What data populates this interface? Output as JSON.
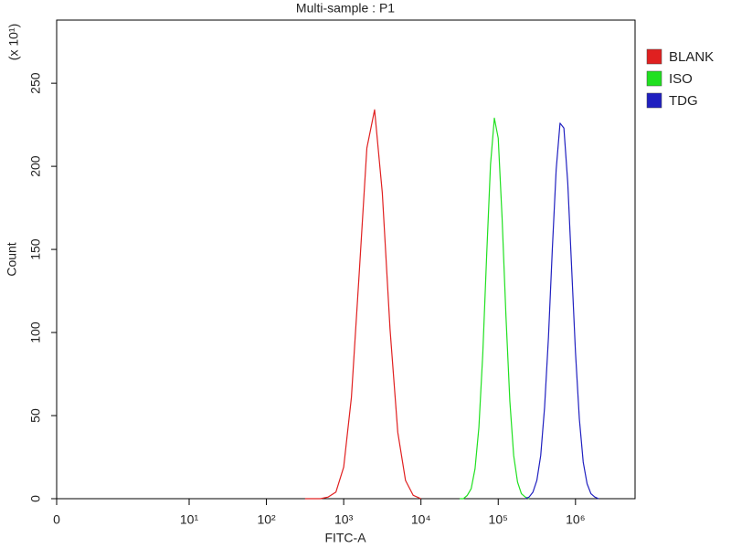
{
  "chart_data": {
    "type": "line",
    "title": "Multi-sample : P1",
    "x_label": "FITC-A",
    "y_label": "Count",
    "y_multiplier": "(x 10¹)",
    "xscale": "logicle",
    "xlim": [
      0,
      5900000
    ],
    "xticks": [
      0,
      {
        "value": 10,
        "label": "10¹"
      },
      {
        "value": 100,
        "label": "10²"
      },
      {
        "value": 1000,
        "label": "10³"
      },
      {
        "value": 10000,
        "label": "10⁴"
      },
      {
        "value": 100000,
        "label": "10⁵"
      },
      {
        "value": 1000000,
        "label": "10⁶"
      }
    ],
    "ylim": [
      0,
      288
    ],
    "yticks": [
      0,
      50,
      100,
      150,
      200,
      250
    ],
    "series": [
      {
        "name": "BLANK",
        "color": "#e02020",
        "x": [
          316,
          398,
          501,
          631,
          794,
          1000,
          1259,
          1585,
          1995,
          2512,
          3162,
          3981,
          5012,
          6310,
          7943,
          10000
        ],
        "values": [
          0,
          0,
          0,
          1,
          4,
          19,
          61,
          135,
          211,
          234,
          184,
          102,
          40,
          11,
          2,
          0
        ]
      },
      {
        "name": "ISO",
        "color": "#20e020",
        "x": [
          31623,
          35481,
          39811,
          44668,
          50119,
          56234,
          63096,
          70795,
          79433,
          89125,
          100000,
          112202,
          125893,
          141254,
          158489,
          177828,
          199526,
          223872,
          251189
        ],
        "values": [
          0,
          0,
          2,
          6,
          18,
          43,
          87,
          146,
          201,
          229,
          217,
          169,
          110,
          59,
          26,
          10,
          3,
          1,
          0
        ]
      },
      {
        "name": "TDG",
        "color": "#2020c0",
        "x": [
          223872,
          251189,
          281838,
          316228,
          354813,
          398107,
          446684,
          501187,
          562341,
          630957,
          707946,
          794328,
          891251,
          1000000,
          1122018,
          1258925,
          1412538,
          1584893,
          1778279,
          1995262
        ],
        "values": [
          0,
          1,
          4,
          11,
          26,
          55,
          97,
          150,
          198,
          226,
          223,
          190,
          139,
          88,
          48,
          22,
          9,
          3,
          1,
          0
        ]
      }
    ]
  }
}
